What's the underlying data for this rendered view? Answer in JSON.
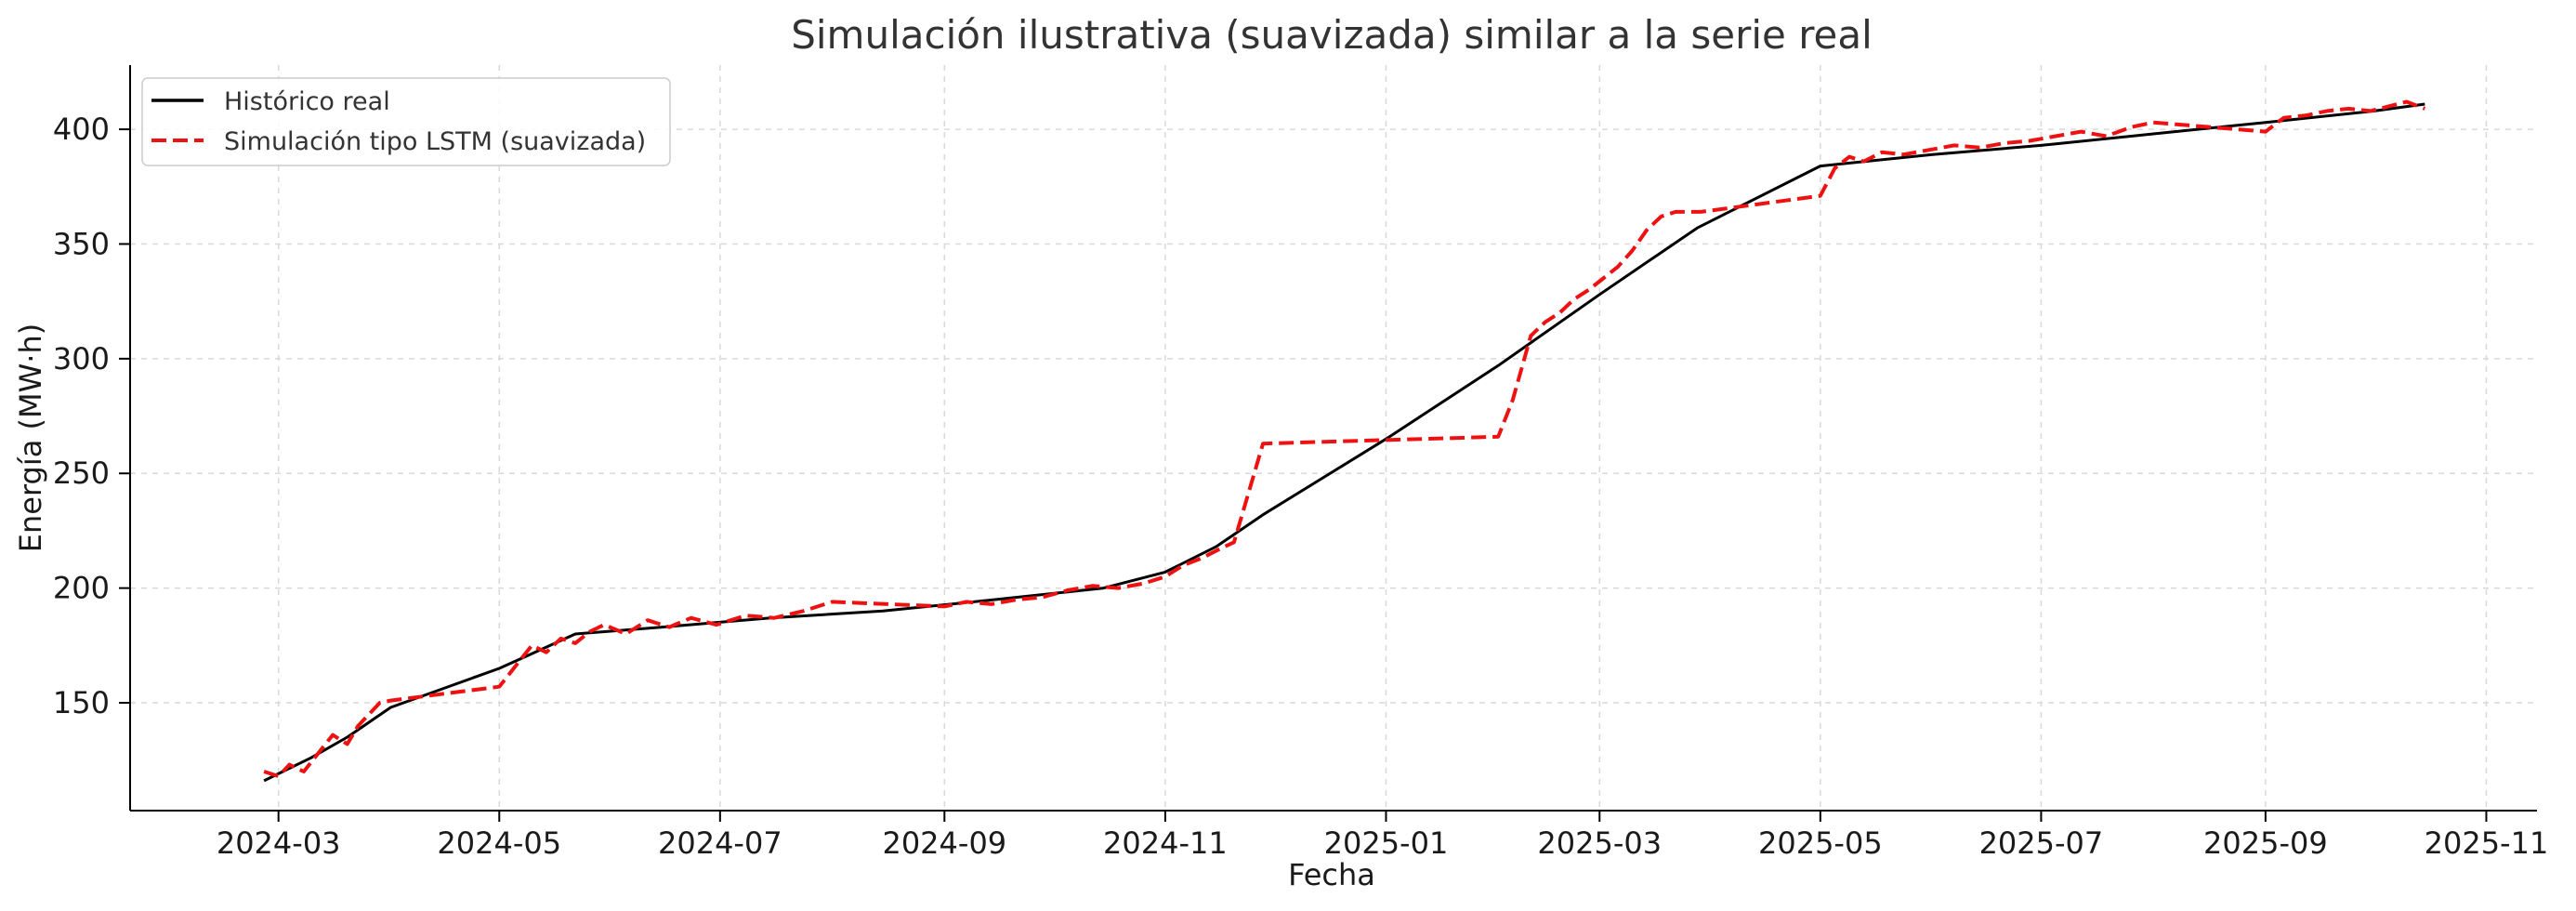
{
  "chart_data": {
    "type": "line",
    "title": "Simulación ilustrativa (suavizada) similar a la serie real",
    "xlabel": "Fecha",
    "ylabel": "Energía (MW·h)",
    "x_type": "date",
    "xlim": [
      "2024-01-20",
      "2025-11-15"
    ],
    "ylim": [
      103,
      428
    ],
    "x_ticks": [
      "2024-03-01",
      "2024-05-01",
      "2024-07-01",
      "2024-09-01",
      "2024-11-01",
      "2025-01-01",
      "2025-03-01",
      "2025-05-01",
      "2025-07-01",
      "2025-09-01",
      "2025-11-01"
    ],
    "x_tick_labels": [
      "2024-03",
      "2024-05",
      "2024-07",
      "2024-09",
      "2024-11",
      "2025-01",
      "2025-03",
      "2025-05",
      "2025-07",
      "2025-09",
      "2025-11"
    ],
    "y_ticks": [
      150,
      200,
      250,
      300,
      350,
      400
    ],
    "y_tick_labels": [
      "150",
      "200",
      "250",
      "300",
      "350",
      "400"
    ],
    "grid": true,
    "legend_position": "top-left",
    "series": [
      {
        "name": "Histórico real",
        "color": "#000000",
        "line_style": "solid",
        "x": [
          "2024-02-26",
          "2024-03-10",
          "2024-03-20",
          "2024-04-01",
          "2024-05-01",
          "2024-05-08",
          "2024-05-22",
          "2024-06-15",
          "2024-07-15",
          "2024-08-15",
          "2024-09-15",
          "2024-10-15",
          "2024-11-01",
          "2024-11-15",
          "2024-11-28",
          "2025-01-01",
          "2025-02-01",
          "2025-03-01",
          "2025-03-28",
          "2025-05-01",
          "2025-06-01",
          "2025-07-01",
          "2025-08-01",
          "2025-09-01",
          "2025-10-01",
          "2025-10-15"
        ],
        "y": [
          116,
          126,
          135,
          148,
          165,
          170,
          180,
          183,
          187,
          190,
          195,
          200,
          207,
          218,
          232,
          265,
          297,
          328,
          357,
          384,
          389,
          393,
          398,
          403,
          408,
          411
        ]
      },
      {
        "name": "Simulación tipo LSTM (suavizada)",
        "color": "#ee1111",
        "line_style": "dashed",
        "x": [
          "2024-02-26",
          "2024-03-01",
          "2024-03-04",
          "2024-03-08",
          "2024-03-12",
          "2024-03-16",
          "2024-03-20",
          "2024-03-23",
          "2024-03-26",
          "2024-03-29",
          "2024-04-01",
          "2024-05-01",
          "2024-05-05",
          "2024-05-10",
          "2024-05-14",
          "2024-05-18",
          "2024-05-22",
          "2024-05-26",
          "2024-05-30",
          "2024-06-05",
          "2024-06-11",
          "2024-06-17",
          "2024-06-23",
          "2024-06-30",
          "2024-07-08",
          "2024-07-16",
          "2024-07-24",
          "2024-08-01",
          "2024-09-01",
          "2024-09-07",
          "2024-09-14",
          "2024-09-21",
          "2024-09-28",
          "2024-10-05",
          "2024-10-12",
          "2024-10-19",
          "2024-10-26",
          "2024-11-01",
          "2024-11-06",
          "2024-11-11",
          "2024-11-16",
          "2024-11-20",
          "2024-11-28",
          "2025-02-01",
          "2025-02-05",
          "2025-02-10",
          "2025-02-14",
          "2025-02-18",
          "2025-02-22",
          "2025-02-26",
          "2025-03-02",
          "2025-03-06",
          "2025-03-10",
          "2025-03-14",
          "2025-03-18",
          "2025-03-22",
          "2025-03-26",
          "2025-03-29",
          "2025-05-01",
          "2025-05-05",
          "2025-05-09",
          "2025-05-13",
          "2025-05-18",
          "2025-05-24",
          "2025-05-31",
          "2025-06-07",
          "2025-06-14",
          "2025-06-21",
          "2025-06-28",
          "2025-07-05",
          "2025-07-12",
          "2025-07-19",
          "2025-07-26",
          "2025-08-01",
          "2025-09-01",
          "2025-09-06",
          "2025-09-12",
          "2025-09-18",
          "2025-09-24",
          "2025-09-30",
          "2025-10-05",
          "2025-10-10",
          "2025-10-15"
        ],
        "y": [
          120,
          118,
          123,
          120,
          128,
          136,
          132,
          140,
          145,
          150,
          151,
          157,
          165,
          175,
          172,
          178,
          176,
          181,
          184,
          180,
          186,
          183,
          187,
          184,
          188,
          187,
          190,
          194,
          192,
          194,
          193,
          195,
          196,
          199,
          201,
          200,
          202,
          205,
          210,
          213,
          217,
          220,
          263,
          266,
          282,
          310,
          316,
          320,
          326,
          330,
          335,
          340,
          347,
          356,
          362,
          364,
          364,
          364,
          371,
          383,
          388,
          386,
          390,
          389,
          391,
          393,
          392,
          394,
          395,
          397,
          399,
          397,
          401,
          403,
          399,
          405,
          406,
          408,
          409,
          408,
          410,
          412,
          409
        ]
      }
    ]
  }
}
